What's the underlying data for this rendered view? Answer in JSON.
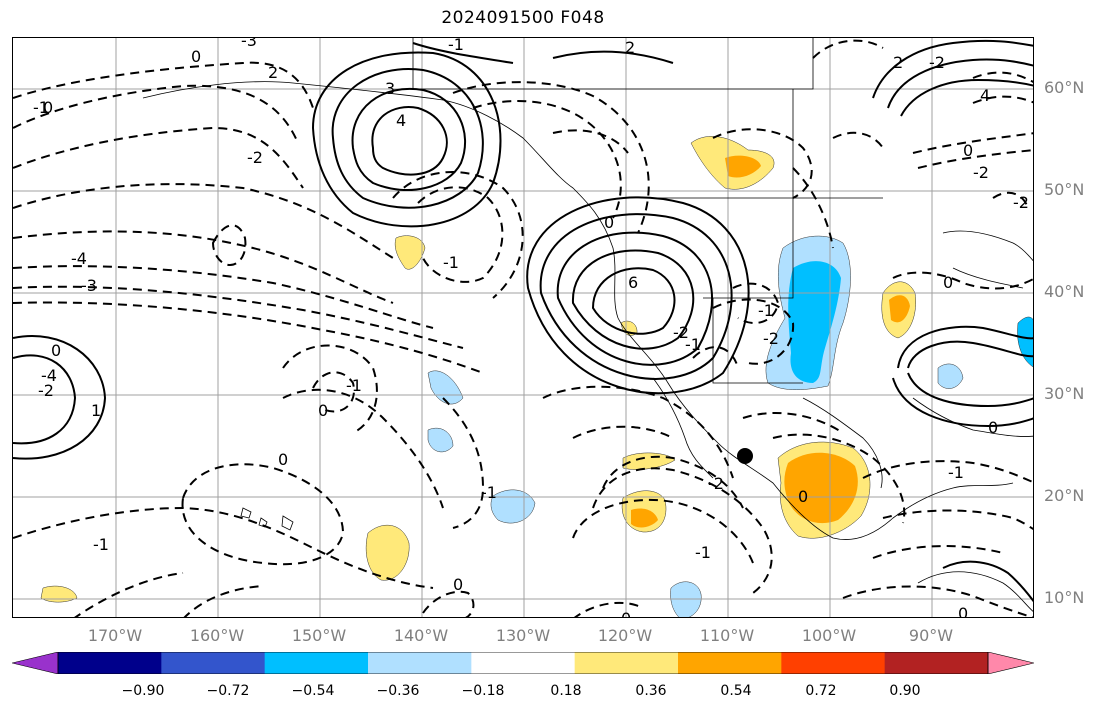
{
  "title": "2024091500 F048",
  "lat_labels": [
    "60°N",
    "50°N",
    "40°N",
    "30°N",
    "20°N",
    "10°N"
  ],
  "lon_labels": [
    "170°W",
    "160°W",
    "150°W",
    "140°W",
    "130°W",
    "120°W",
    "110°W",
    "100°W",
    "90°W"
  ],
  "colorbar": {
    "ticks": [
      "−0.90",
      "−0.72",
      "−0.54",
      "−0.36",
      "−0.18",
      "0.18",
      "0.36",
      "0.54",
      "0.72",
      "0.90"
    ],
    "colors": [
      "#9932cc",
      "#00008b",
      "#3355cc",
      "#00bfff",
      "#b0e0ff",
      "#ffffff",
      "#ffe97a",
      "#ffa500",
      "#ff4000",
      "#b22222",
      "#ff88aa"
    ]
  },
  "contour_labels": [
    "-3",
    "0",
    "-1",
    "2",
    "-2",
    "3",
    "4",
    "-4",
    "6",
    "0",
    "-2",
    "2",
    "-1",
    "0",
    "-2",
    "-1",
    "-1",
    "0",
    "-1",
    "0",
    "4",
    "-2",
    "0",
    "-3",
    "1",
    "-4",
    "-2",
    "-1",
    "0",
    "0",
    "-1",
    "-1",
    "-2",
    "-1",
    "0",
    "0",
    "-2",
    "0",
    "2",
    "-2",
    "0",
    "-1",
    "0"
  ],
  "marker": "typhoon-center"
}
